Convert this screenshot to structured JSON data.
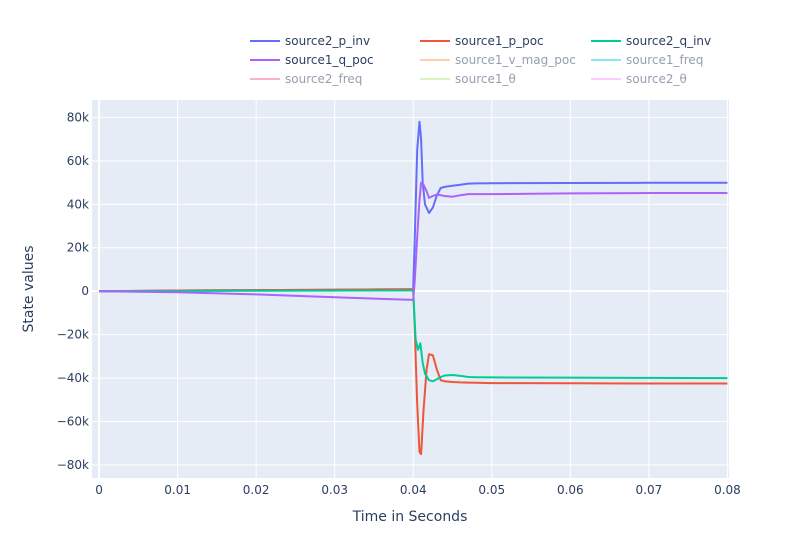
{
  "chart_data": {
    "type": "line",
    "xlabel": "Time in Seconds",
    "ylabel": "State values",
    "xlim": [
      -0.0009,
      0.0802
    ],
    "ylim": [
      -86000,
      88000
    ],
    "x_ticks": [
      0,
      0.01,
      0.02,
      0.03,
      0.04,
      0.05,
      0.06,
      0.07,
      0.08
    ],
    "x_tick_labels": [
      "0",
      "0.01",
      "0.02",
      "0.03",
      "0.04",
      "0.05",
      "0.06",
      "0.07",
      "0.08"
    ],
    "y_ticks": [
      -80000,
      -60000,
      -40000,
      -20000,
      0,
      20000,
      40000,
      60000,
      80000
    ],
    "y_tick_labels": [
      "−80k",
      "−60k",
      "−40k",
      "−20k",
      "0",
      "20k",
      "40k",
      "60k",
      "80k"
    ],
    "grid": true,
    "legend_position": "top",
    "series": [
      {
        "name": "source2_p_inv",
        "color": "#636efa",
        "visible": true,
        "x": [
          0,
          0.01,
          0.02,
          0.03,
          0.04,
          0.0402,
          0.0405,
          0.0408,
          0.041,
          0.0412,
          0.0415,
          0.042,
          0.0425,
          0.043,
          0.0435,
          0.044,
          0.045,
          0.046,
          0.047,
          0.048,
          0.05,
          0.06,
          0.07,
          0.08
        ],
        "y": [
          0,
          300,
          500,
          700,
          900,
          25000,
          65000,
          78000,
          70000,
          50000,
          40000,
          36000,
          38500,
          44000,
          47500,
          48000,
          48500,
          49000,
          49500,
          49600,
          49700,
          49800,
          49900,
          49900
        ]
      },
      {
        "name": "source1_p_poc",
        "color": "#ef553b",
        "visible": true,
        "x": [
          0,
          0.01,
          0.02,
          0.03,
          0.04,
          0.0402,
          0.0405,
          0.0408,
          0.041,
          0.0413,
          0.0417,
          0.042,
          0.0425,
          0.043,
          0.0435,
          0.044,
          0.045,
          0.046,
          0.047,
          0.048,
          0.05,
          0.06,
          0.07,
          0.08
        ],
        "y": [
          0,
          300,
          500,
          700,
          900,
          -18000,
          -52000,
          -74000,
          -75000,
          -55000,
          -36000,
          -29000,
          -29500,
          -36000,
          -41000,
          -41500,
          -41800,
          -42000,
          -42100,
          -42200,
          -42300,
          -42400,
          -42500,
          -42500
        ]
      },
      {
        "name": "source2_q_inv",
        "color": "#00cc96",
        "visible": true,
        "x": [
          0,
          0.01,
          0.02,
          0.03,
          0.04,
          0.0403,
          0.0406,
          0.0409,
          0.0412,
          0.0415,
          0.042,
          0.0425,
          0.043,
          0.0435,
          0.044,
          0.045,
          0.046,
          0.047,
          0.048,
          0.05,
          0.06,
          0.07,
          0.08
        ],
        "y": [
          0,
          100,
          200,
          250,
          300,
          -22000,
          -27000,
          -24000,
          -33000,
          -38000,
          -41000,
          -41500,
          -40500,
          -39500,
          -38800,
          -38600,
          -39000,
          -39500,
          -39600,
          -39700,
          -39800,
          -39900,
          -40000
        ]
      },
      {
        "name": "source1_q_poc",
        "color": "#ab63fa",
        "visible": true,
        "x": [
          0,
          0.01,
          0.02,
          0.03,
          0.04,
          0.0402,
          0.0405,
          0.0408,
          0.041,
          0.0413,
          0.0417,
          0.042,
          0.0425,
          0.043,
          0.0435,
          0.044,
          0.045,
          0.046,
          0.047,
          0.048,
          0.05,
          0.06,
          0.07,
          0.08
        ],
        "y": [
          0,
          -500,
          -1500,
          -2800,
          -4000,
          5000,
          25000,
          42000,
          50000,
          49000,
          46000,
          43000,
          43800,
          44500,
          44200,
          43800,
          43500,
          44200,
          44700,
          44700,
          44700,
          45000,
          45200,
          45200
        ]
      },
      {
        "name": "source1_v_mag_poc",
        "color": "#ffa15a",
        "visible": false,
        "x": [],
        "y": []
      },
      {
        "name": "source1_freq",
        "color": "#19d3f3",
        "visible": false,
        "x": [],
        "y": []
      },
      {
        "name": "source2_freq",
        "color": "#ff6692",
        "visible": false,
        "x": [],
        "y": []
      },
      {
        "name": "source1_θ",
        "color": "#b6e880",
        "visible": false,
        "x": [],
        "y": []
      },
      {
        "name": "source2_θ",
        "color": "#ff97ff",
        "visible": false,
        "x": [],
        "y": []
      }
    ]
  }
}
